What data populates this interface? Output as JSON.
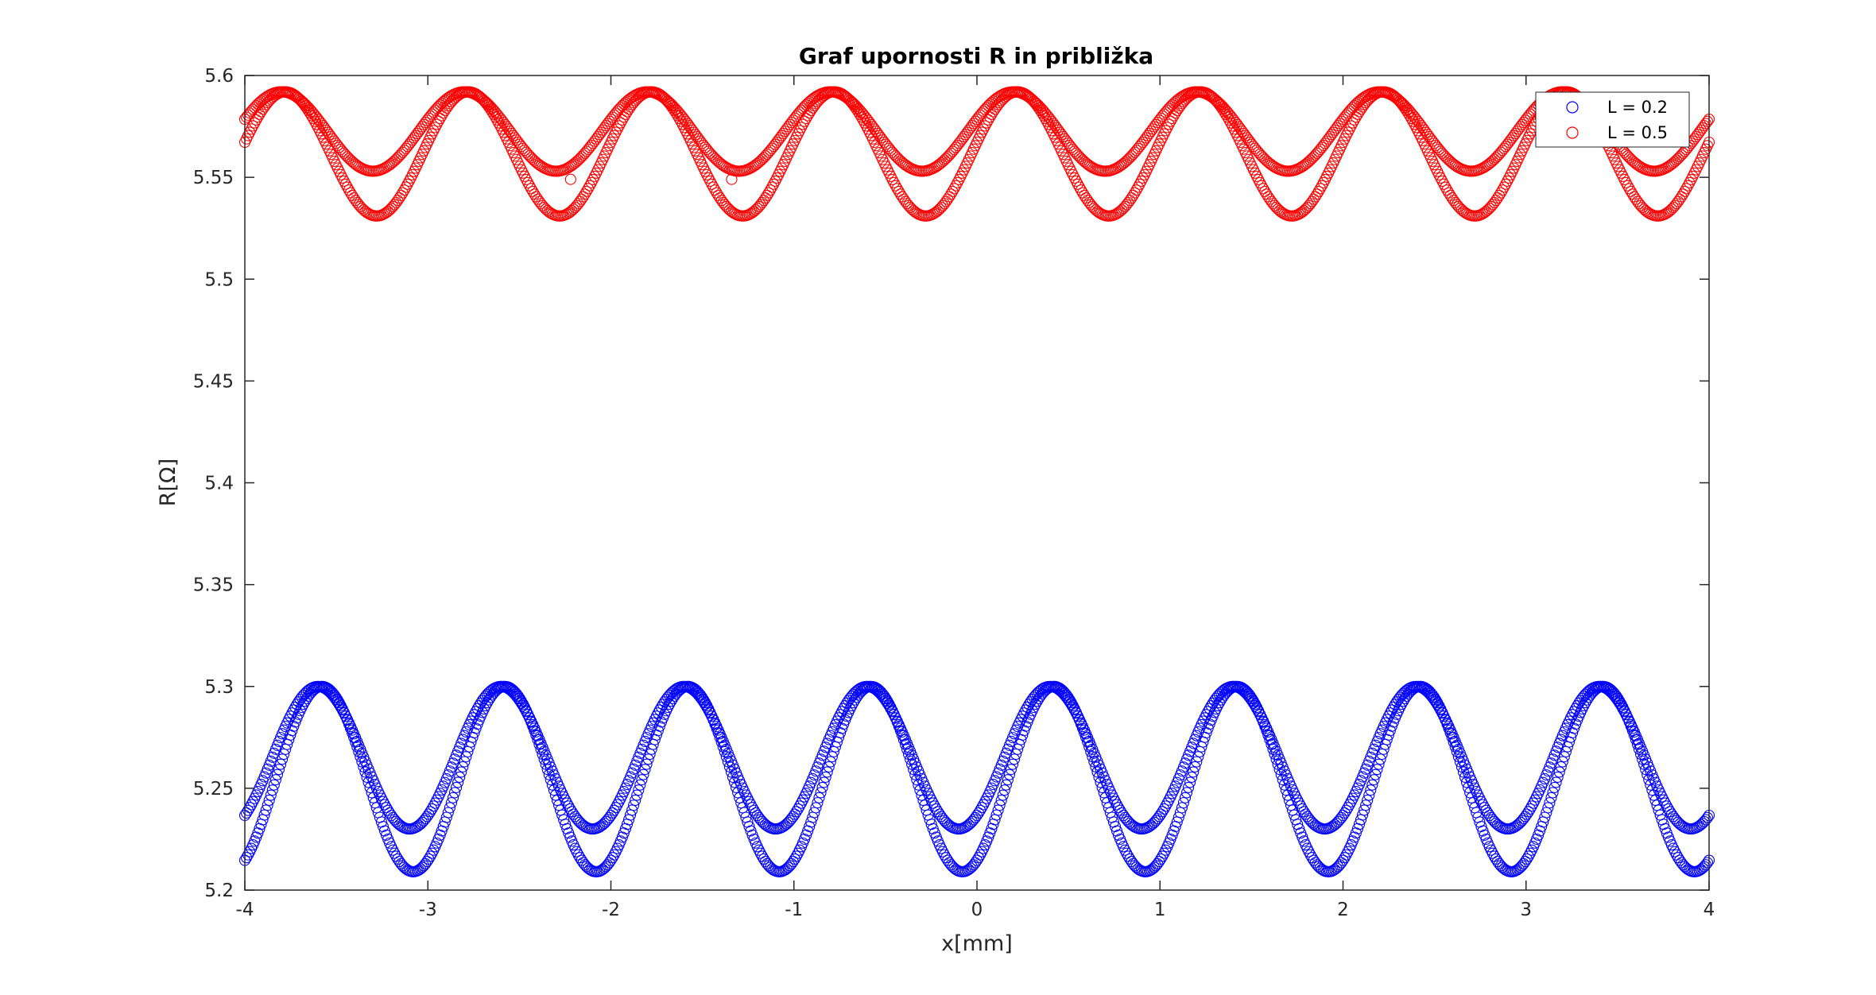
{
  "chart_data": {
    "type": "scatter",
    "title": "Graf upornosti R in približka",
    "xlabel": "x[mm]",
    "ylabel": "R[Ω]",
    "xlim": [
      -4,
      4
    ],
    "ylim": [
      5.2,
      5.6
    ],
    "xticks": [
      -4,
      -3,
      -2,
      -1,
      0,
      1,
      2,
      3,
      4
    ],
    "yticks": [
      5.2,
      5.25,
      5.3,
      5.35,
      5.4,
      5.45,
      5.5,
      5.55,
      5.6
    ],
    "xtick_labels": [
      "-4",
      "-3",
      "-2",
      "-1",
      "0",
      "1",
      "2",
      "3",
      "4"
    ],
    "ytick_labels": [
      "5.2",
      "5.25",
      "5.3",
      "5.35",
      "5.4",
      "5.45",
      "5.5",
      "5.55",
      "5.6"
    ],
    "legend_position": "top-right",
    "marker": "open-circle",
    "grid": false,
    "series": [
      {
        "name": "L = 0.2",
        "color": "#0000ff",
        "profile": "resistance, period 1 mm, sinusoidal",
        "envelope": [
          {
            "max": 5.3,
            "min": 5.23
          },
          {
            "max": 5.3,
            "min": 5.209
          }
        ],
        "phase_shift_mm": 0.02,
        "first_peak_x": -3.6,
        "endpoints": {
          "x_min": -4,
          "x_max": 4,
          "y_at_x_min": [
            5.221,
            5.245
          ],
          "y_at_x_max": [
            5.221,
            5.245
          ]
        }
      },
      {
        "name": "L = 0.5",
        "color": "#ff0000",
        "profile": "resistance, period 1 mm, sinusoidal",
        "envelope": [
          {
            "max": 5.592,
            "min": 5.553
          },
          {
            "max": 5.592,
            "min": 5.531
          }
        ],
        "phase_shift_mm": 0.02,
        "first_peak_x": -3.8,
        "endpoints": {
          "x_min": -4,
          "x_max": 4,
          "y_at_x_min": [
            5.562,
            5.575
          ],
          "y_at_x_max": [
            5.562,
            5.575
          ]
        },
        "outliers": [
          {
            "x": -2.22,
            "y": 5.549
          },
          {
            "x": -1.34,
            "y": 5.549
          }
        ]
      }
    ]
  }
}
